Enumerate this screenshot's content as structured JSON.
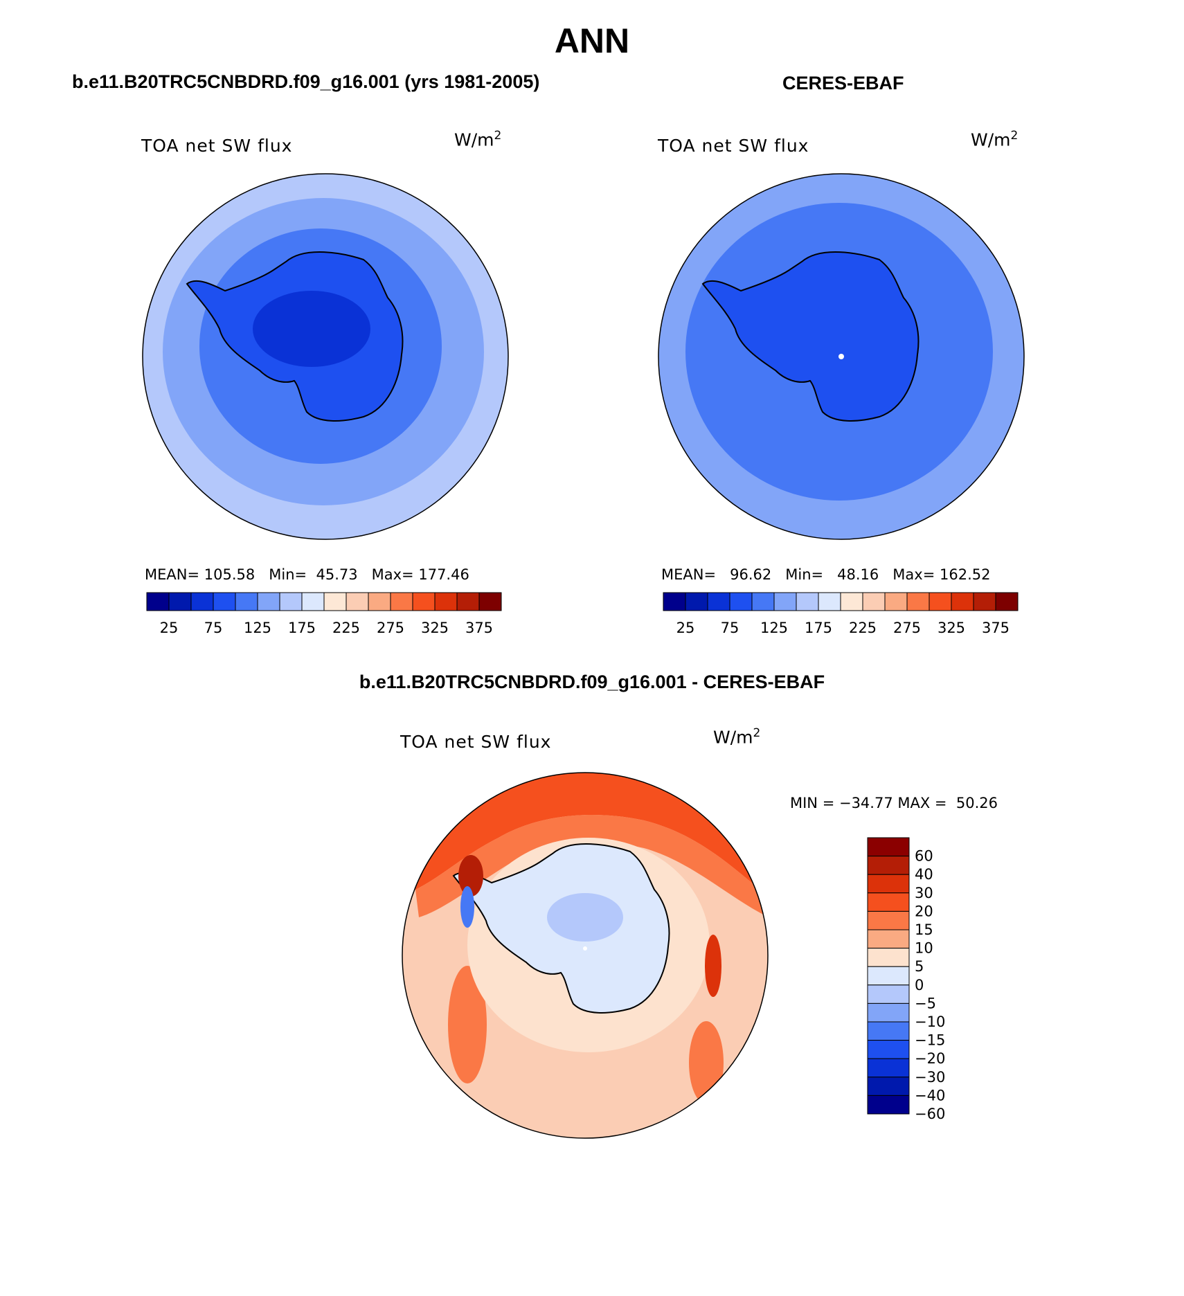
{
  "title": "ANN",
  "panels": {
    "model": {
      "title": "b.e11.B20TRC5CNBDRD.f09_g16.001 (yrs 1981-2005)",
      "variable": "TOA net SW flux",
      "units_base": "W/m",
      "units_exp": "2",
      "mean_label": "MEAN=",
      "mean": "105.58",
      "min_label": "Min=",
      "min": "45.73",
      "max_label": "Max=",
      "max": "177.46"
    },
    "obs": {
      "title": "CERES-EBAF",
      "variable": "TOA net SW flux",
      "units_base": "W/m",
      "units_exp": "2",
      "mean_label": "MEAN=",
      "mean": "96.62",
      "min_label": "Min=",
      "min": "48.16",
      "max_label": "Max=",
      "max": "162.52"
    },
    "diff": {
      "title": "b.e11.B20TRC5CNBDRD.f09_g16.001 - CERES-EBAF",
      "variable": "TOA net SW flux",
      "units_base": "W/m",
      "units_exp": "2",
      "minmax_text": "MIN = −34.77 MAX =  50.26"
    }
  },
  "colorbar_abs": {
    "colors": [
      "#00008c",
      "#0019ad",
      "#0a32d6",
      "#1e50f0",
      "#4678f5",
      "#82a5f8",
      "#b4c8fb",
      "#dce8fd",
      "#fde8d6",
      "#fbcdb4",
      "#faaa82",
      "#fa7846",
      "#f5501e",
      "#dc320a",
      "#b41e06",
      "#7d0000"
    ],
    "tick_labels": [
      "25",
      "75",
      "125",
      "175",
      "225",
      "275",
      "325",
      "375"
    ]
  },
  "colorbar_diff": {
    "colors": [
      "#8b0000",
      "#b41e06",
      "#dc320a",
      "#f5501e",
      "#fa7846",
      "#faaa82",
      "#fde2ce",
      "#dce8fd",
      "#b4c8fb",
      "#82a5f8",
      "#4678f5",
      "#1e50f0",
      "#0a32d6",
      "#0019ad",
      "#00008c"
    ],
    "tick_labels": [
      "60",
      "40",
      "30",
      "20",
      "15",
      "10",
      "5",
      "0",
      "−5",
      "−10",
      "−15",
      "−20",
      "−30",
      "−40",
      "−60"
    ]
  }
}
